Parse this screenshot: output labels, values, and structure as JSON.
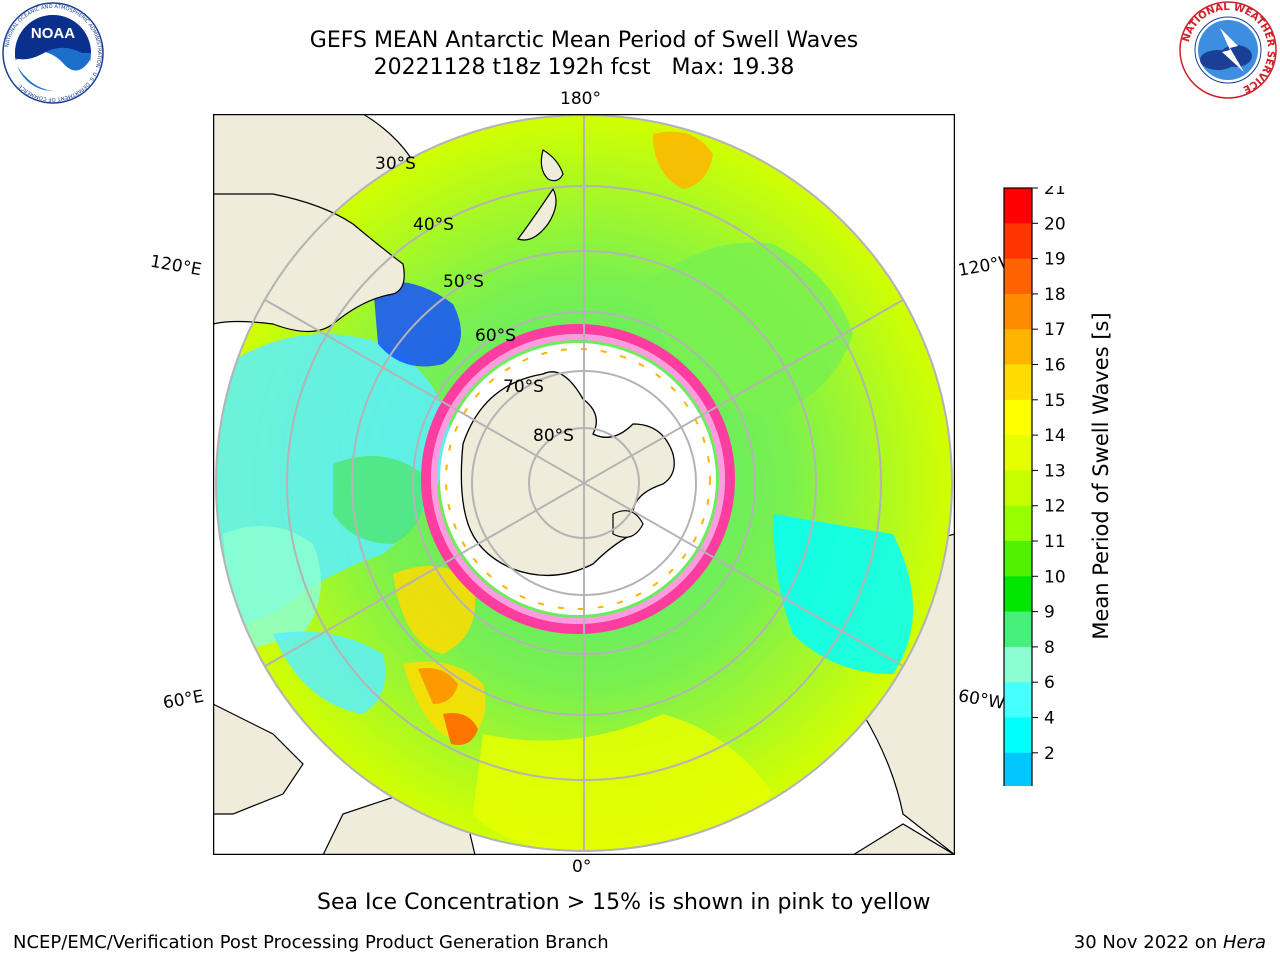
{
  "title": {
    "line1": "GEFS MEAN Antarctic Mean Period of Swell Waves",
    "line2": "20221128 t18z 192h fcst   Max: 19.38"
  },
  "logos": {
    "left": {
      "icon": "noaa-logo",
      "text": "NOAA",
      "ring_text": "NATIONAL OCEANIC AND ATMOSPHERIC ADMINISTRATION · U.S. DEPARTMENT OF COMMERCE"
    },
    "right": {
      "icon": "nws-logo",
      "ring_text": "NATIONAL WEATHER SERVICE"
    }
  },
  "map": {
    "projection": "south-polar-stereographic",
    "longitude_labels": {
      "top": "180°",
      "bottom": "0°",
      "left_upper": "120°E",
      "left_lower": "60°E",
      "right_upper": "120°W",
      "right_lower": "60°W"
    },
    "latitude_labels": [
      "30°S",
      "40°S",
      "50°S",
      "60°S",
      "70°S",
      "80°S"
    ],
    "colors": {
      "land": "#efecdc",
      "grid": "#b4b4b4",
      "coast": "#000000"
    }
  },
  "colorbar": {
    "label": "Mean Period of Swell Waves [s]",
    "ticks": [
      "21",
      "20",
      "19",
      "18",
      "17",
      "16",
      "15",
      "14",
      "13",
      "12",
      "11",
      "10",
      "9",
      "8",
      "6",
      "4",
      "2"
    ],
    "colors": [
      "#ff0000",
      "#ff3500",
      "#ff6200",
      "#ff8c00",
      "#ffb400",
      "#ffdc00",
      "#ffff00",
      "#e6ff00",
      "#c8ff00",
      "#96ff00",
      "#50f000",
      "#00e600",
      "#46f07a",
      "#8cffd2",
      "#46ffff",
      "#00ffff",
      "#00c8ff",
      "#0064ff"
    ],
    "extend_color": "#0000ff"
  },
  "caption": "Sea Ice Concentration > 15% is shown in pink to yellow",
  "footer": {
    "left": "NCEP/EMC/Verification Post Processing Product Generation Branch",
    "right_prefix": "30 Nov 2022 on ",
    "right_machine": "Hera"
  }
}
